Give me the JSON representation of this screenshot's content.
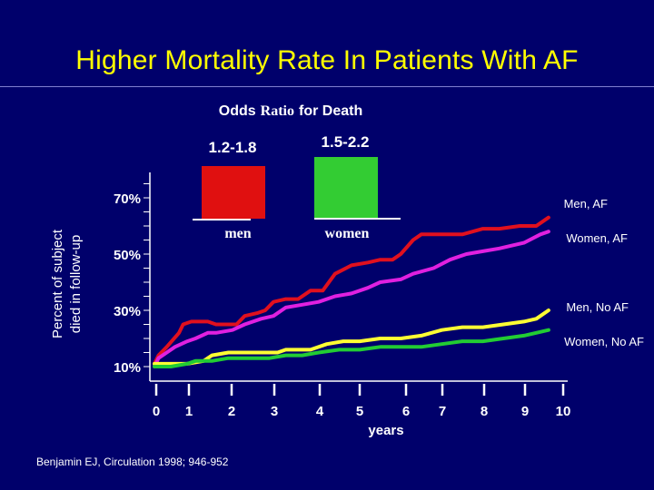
{
  "title": "Higher Mortality Rate In Patients With AF",
  "citation": "Benjamin EJ, Circulation 1998; 946-952",
  "inset": {
    "title_prefix": "Odds",
    "title_mid": "Ratio",
    "title_suffix": "for Death",
    "bars": [
      {
        "category": "men",
        "range": "1.2-1.8",
        "color": "#e01010"
      },
      {
        "category": "women",
        "range": "1.5-2.2",
        "color": "#33cc33"
      }
    ]
  },
  "chart_data": {
    "type": "line",
    "title": "Higher Mortality Rate In Patients With AF",
    "xlabel": "years",
    "ylabel": "Percent of subject died in follow-up",
    "ylabel_lines": [
      "Percent of subject",
      "died in follow-up"
    ],
    "x_ticks": [
      0,
      1,
      2,
      3,
      4,
      5,
      6,
      7,
      8,
      9,
      10
    ],
    "y_ticks": [
      10,
      30,
      50,
      70
    ],
    "y_tick_labels": [
      "10%",
      "30%",
      "50%",
      "70%"
    ],
    "xlim": [
      0,
      10
    ],
    "ylim": [
      10,
      75
    ],
    "grid": false,
    "series": [
      {
        "name": "Men, AF",
        "color": "#e0101e",
        "x": [
          0,
          0.1,
          0.3,
          0.6,
          0.7,
          0.9,
          1.3,
          1.5,
          2.0,
          2.2,
          2.5,
          2.7,
          2.9,
          3.2,
          3.5,
          3.8,
          4.1,
          4.4,
          4.8,
          5.2,
          5.5,
          5.8,
          6.0,
          6.3,
          6.5,
          6.9,
          7.1,
          7.5,
          8.0,
          8.4,
          8.9,
          9.3,
          9.6
        ],
        "y": [
          11,
          14,
          17,
          22,
          25,
          26,
          26,
          25,
          25,
          28,
          29,
          30,
          33,
          34,
          34,
          37,
          37,
          43,
          46,
          47,
          48,
          48,
          50,
          55,
          57,
          57,
          57,
          57,
          59,
          59,
          60,
          60,
          63
        ]
      },
      {
        "name": "Women, AF",
        "color": "#e020e0",
        "x": [
          0,
          0.1,
          0.3,
          0.5,
          0.8,
          1.0,
          1.3,
          1.5,
          1.9,
          2.2,
          2.6,
          2.9,
          3.2,
          3.6,
          4.0,
          4.4,
          4.8,
          5.2,
          5.5,
          6.0,
          6.3,
          6.8,
          7.2,
          7.6,
          8.0,
          8.4,
          8.7,
          9.0,
          9.4,
          9.6
        ],
        "y": [
          10,
          13,
          15,
          17,
          19,
          20,
          22,
          22,
          23,
          25,
          27,
          28,
          31,
          32,
          33,
          35,
          36,
          38,
          40,
          41,
          43,
          45,
          48,
          50,
          51,
          52,
          53,
          54,
          57,
          58
        ]
      },
      {
        "name": "Men, No AF",
        "color": "#ffff33",
        "x": [
          0,
          0.4,
          0.8,
          1.2,
          1.4,
          1.8,
          2.4,
          3.0,
          3.2,
          3.8,
          4.2,
          4.6,
          5.0,
          5.5,
          6.0,
          6.5,
          7.0,
          7.5,
          8.0,
          8.5,
          9.0,
          9.3,
          9.6
        ],
        "y": [
          11,
          11,
          11,
          12,
          14,
          15,
          15,
          15,
          16,
          16,
          18,
          19,
          19,
          20,
          20,
          21,
          23,
          24,
          24,
          25,
          26,
          27,
          30
        ]
      },
      {
        "name": "Women, No AF",
        "color": "#22cc33",
        "x": [
          0,
          0.4,
          0.8,
          1.0,
          1.4,
          1.8,
          2.2,
          2.8,
          3.2,
          3.6,
          4.0,
          4.5,
          5.0,
          5.5,
          6.0,
          6.5,
          7.0,
          7.5,
          8.0,
          8.5,
          9.0,
          9.3,
          9.6
        ],
        "y": [
          10,
          10,
          11,
          12,
          12,
          13,
          13,
          13,
          14,
          14,
          15,
          16,
          16,
          17,
          17,
          17,
          18,
          19,
          19,
          20,
          21,
          22,
          23
        ]
      }
    ],
    "annotations": [
      "Men, AF",
      "Women, AF",
      "Men, No AF",
      "Women, No AF"
    ]
  }
}
